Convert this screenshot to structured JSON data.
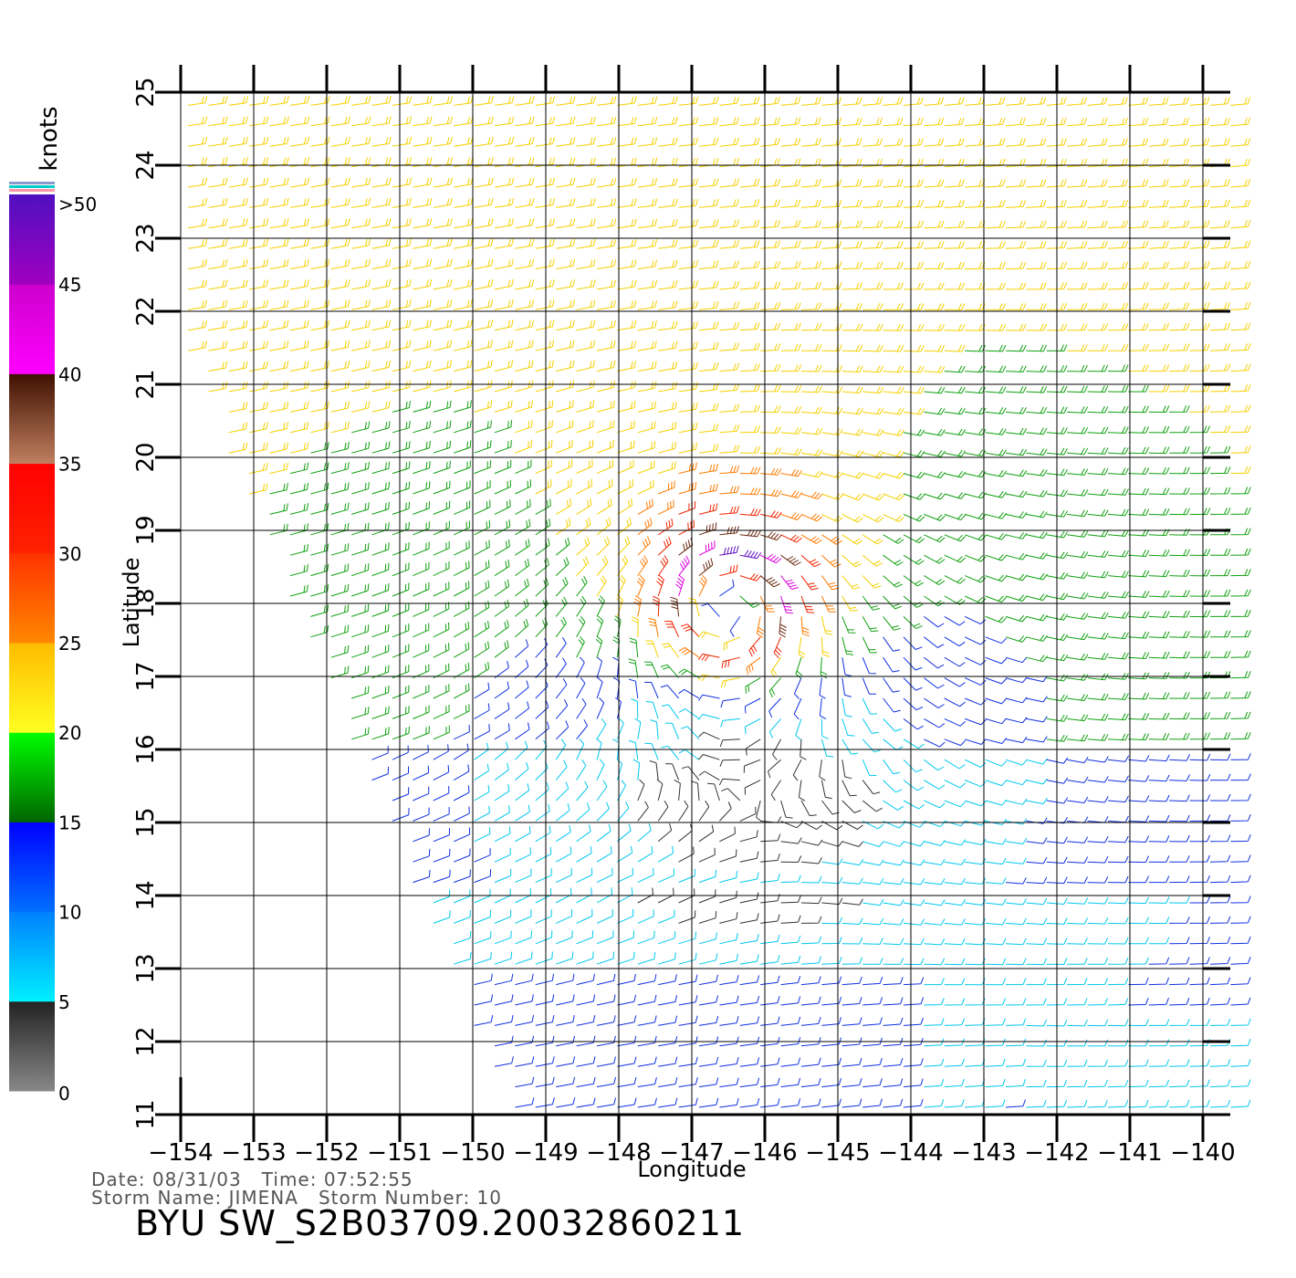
{
  "chart_data": {
    "type": "wind-barb-map",
    "xlabel": "Longitude",
    "ylabel": "Latitude",
    "xlim": [
      -154,
      -140
    ],
    "ylim": [
      11,
      25
    ],
    "x_ticks": [
      -154,
      -153,
      -152,
      -151,
      -150,
      -149,
      -148,
      -147,
      -146,
      -145,
      -144,
      -143,
      -142,
      -141,
      -140
    ],
    "y_ticks": [
      11,
      12,
      13,
      14,
      15,
      16,
      17,
      18,
      19,
      20,
      21,
      22,
      23,
      24,
      25
    ],
    "x_tick_labels": [
      "−154",
      "−153",
      "−152",
      "−151",
      "−150",
      "−149",
      "−148",
      "−147",
      "−146",
      "−145",
      "−144",
      "−143",
      "−142",
      "−141",
      "−140"
    ],
    "y_tick_labels": [
      "11",
      "12",
      "13",
      "14",
      "15",
      "16",
      "17",
      "18",
      "19",
      "20",
      "21",
      "22",
      "23",
      "24",
      "25"
    ],
    "grid": true,
    "storm_center": {
      "lon": -146.5,
      "lat": 18.0
    },
    "colorbar": {
      "unit_label": "knots",
      "labels": [
        "0",
        "5",
        "10",
        "15",
        "20",
        "25",
        "30",
        "35",
        "40",
        "45",
        ">50"
      ],
      "bands": [
        {
          "from": 0,
          "to": 5,
          "colors": [
            "#888888",
            "#222222"
          ]
        },
        {
          "from": 5,
          "to": 10,
          "colors": [
            "#00f0ff",
            "#0080ff"
          ]
        },
        {
          "from": 10,
          "to": 15,
          "colors": [
            "#0070ff",
            "#0000ff"
          ]
        },
        {
          "from": 15,
          "to": 20,
          "colors": [
            "#006400",
            "#00ff00"
          ]
        },
        {
          "from": 20,
          "to": 25,
          "colors": [
            "#ffff20",
            "#ffbb00"
          ]
        },
        {
          "from": 25,
          "to": 30,
          "colors": [
            "#ff8800",
            "#ff3300"
          ]
        },
        {
          "from": 30,
          "to": 35,
          "colors": [
            "#ff2200",
            "#ff0000"
          ]
        },
        {
          "from": 35,
          "to": 40,
          "colors": [
            "#c08060",
            "#401000"
          ]
        },
        {
          "from": 40,
          "to": 45,
          "colors": [
            "#ff00ff",
            "#cc00cc"
          ]
        },
        {
          "from": 45,
          "to": 50,
          "colors": [
            "#a000c0",
            "#5010c0"
          ]
        }
      ],
      "top_colors": [
        "#8899cc",
        "#00cccc",
        "#ff99aa"
      ]
    }
  },
  "header": {
    "date_line": "Date: 08/31/03   Time: 07:52:55",
    "storm_line": "Storm Name: JIMENA   Storm Number: 10",
    "product_id": "BYU SW_S2B03709.20032860211"
  }
}
